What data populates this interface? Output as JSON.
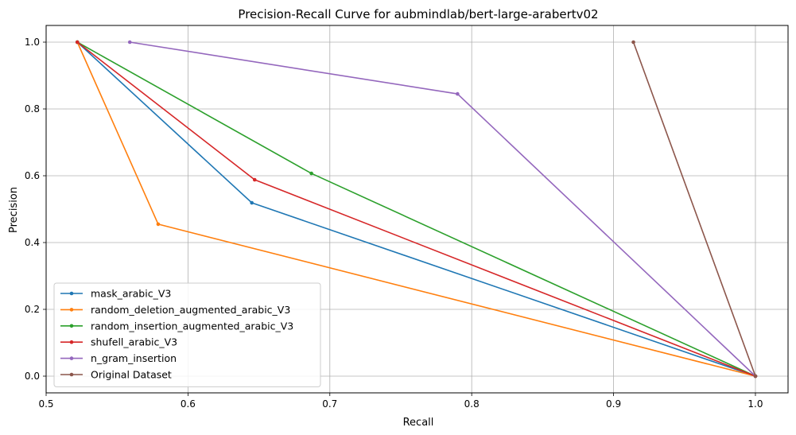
{
  "chart_data": {
    "type": "line",
    "title": "Precision-Recall Curve for aubmindlab/bert-large-arabertv02",
    "xlabel": "Recall",
    "ylabel": "Precision",
    "xlim": [
      0.5,
      1.023
    ],
    "ylim": [
      -0.05,
      1.05
    ],
    "x_ticks": [
      "0.5",
      "0.6",
      "0.7",
      "0.8",
      "0.9",
      "1.0"
    ],
    "y_ticks": [
      "0.0",
      "0.2",
      "0.4",
      "0.6",
      "0.8",
      "1.0"
    ],
    "grid": true,
    "legend_position": "lower-left",
    "series": [
      {
        "name": "mask_arabic_V3",
        "color": "#1f77b4",
        "x": [
          0.522,
          0.645,
          1.0
        ],
        "y": [
          1.0,
          0.519,
          0.0
        ]
      },
      {
        "name": "random_deletion_augmented_arabic_V3",
        "color": "#ff7f0e",
        "x": [
          0.522,
          0.579,
          1.0
        ],
        "y": [
          1.0,
          0.455,
          0.0
        ]
      },
      {
        "name": "random_insertion_augmented_arabic_V3",
        "color": "#2ca02c",
        "x": [
          0.522,
          0.687,
          1.0
        ],
        "y": [
          1.0,
          0.607,
          0.0
        ]
      },
      {
        "name": "shufell_arabic_V3",
        "color": "#d62728",
        "x": [
          0.522,
          0.647,
          1.0
        ],
        "y": [
          1.0,
          0.588,
          0.0
        ]
      },
      {
        "name": "n_gram_insertion",
        "color": "#9467bd",
        "x": [
          0.559,
          0.79,
          1.0
        ],
        "y": [
          1.0,
          0.845,
          0.0
        ]
      },
      {
        "name": "Original Dataset",
        "color": "#8c564b",
        "x": [
          0.914,
          1.0
        ],
        "y": [
          1.0,
          0.0
        ]
      }
    ]
  }
}
